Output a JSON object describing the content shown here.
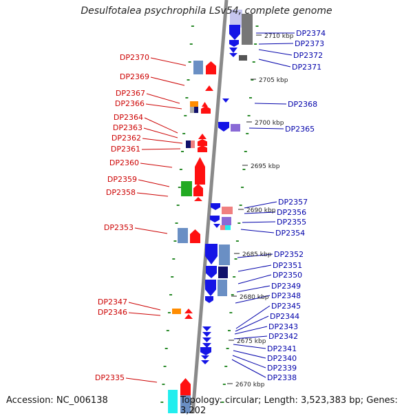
{
  "header": {
    "title": "Desulfotalea psychrophila LSv54, complete genome"
  },
  "footer": {
    "accession": "Accession: NC_006138",
    "topology": "Topology: circular; Length: 3,523,383 bp; Genes: 3,202"
  },
  "colors": {
    "label_left": "#cc0000",
    "label_right": "#0000aa",
    "backbone": "#8a8a8a",
    "tick": "#2a8a2a"
  },
  "scale_labels": [
    "2710 kbp",
    "2705 kbp",
    "2700 kbp",
    "2695 kbp",
    "2690 kbp",
    "2685 kbp",
    "2680 kbp",
    "2675 kbp",
    "2670 kbp"
  ],
  "left_genes": [
    "DP2370",
    "DP2369",
    "DP2367",
    "DP2366",
    "DP2364",
    "DP2363",
    "DP2362",
    "DP2361",
    "DP2360",
    "DP2359",
    "DP2358",
    "DP2353",
    "DP2347",
    "DP2346",
    "DP2335"
  ],
  "right_genes": [
    "DP2374",
    "DP2373",
    "DP2372",
    "DP2371",
    "DP2368",
    "DP2365",
    "DP2357",
    "DP2356",
    "DP2355",
    "DP2354",
    "DP2352",
    "DP2351",
    "DP2350",
    "DP2349",
    "DP2348",
    "DP2345",
    "DP2344",
    "DP2343",
    "DP2342",
    "DP2341",
    "DP2340",
    "DP2339",
    "DP2338"
  ]
}
